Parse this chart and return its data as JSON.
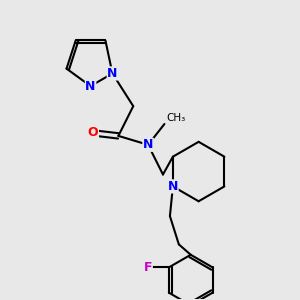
{
  "background_color": "#e8e8e8",
  "bond_color": "#000000",
  "bond_width": 1.5,
  "atom_colors": {
    "N": "#0000ff",
    "O": "#ff0000",
    "F": "#cc00cc",
    "C": "#000000"
  },
  "font_size": 9,
  "fig_width": 3.0,
  "fig_height": 3.0,
  "dpi": 100
}
